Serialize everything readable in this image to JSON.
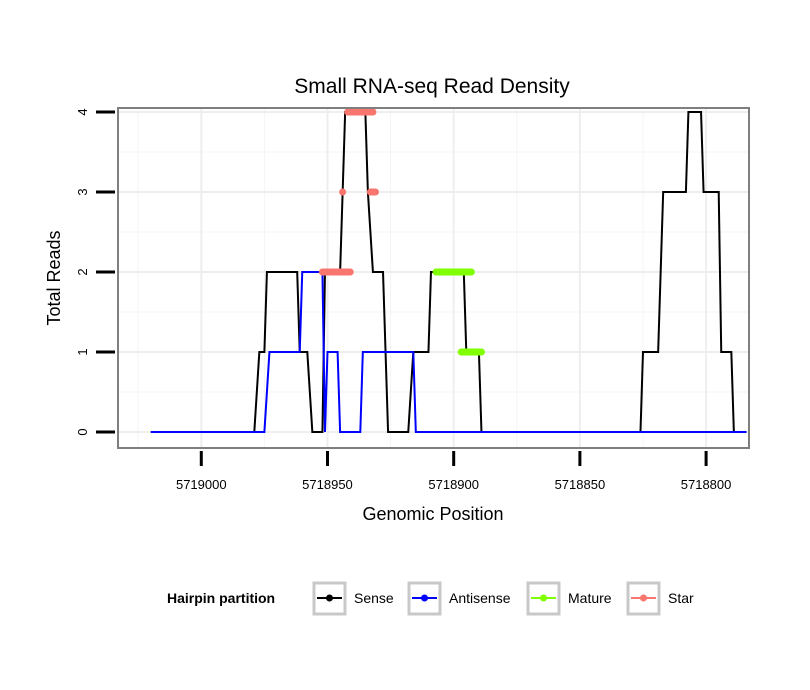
{
  "chart_data": {
    "type": "line",
    "title": "Small RNA-seq Read Density",
    "xlabel": "Genomic Position",
    "ylabel": "Total Reads",
    "xlim": [
      5719033,
      5718783
    ],
    "x_reversed": true,
    "ylim": [
      -0.2,
      4.05
    ],
    "x_ticks": [
      5719000,
      5718950,
      5718900,
      5718850,
      5718800
    ],
    "x_tick_labels": [
      "5719000",
      "5718950",
      "5718900",
      "5718850",
      "5718800"
    ],
    "y_ticks": [
      0,
      1,
      2,
      3,
      4
    ],
    "y_tick_labels": [
      "0",
      "1",
      "2",
      "3",
      "4"
    ],
    "grid": true,
    "legend": {
      "title": "Hairpin partition",
      "position": "bottom",
      "entries": [
        "Sense",
        "Antisense",
        "Mature",
        "Star"
      ]
    },
    "series": [
      {
        "name": "Sense",
        "kind": "line",
        "color": "#000000",
        "points": [
          [
            5719020,
            0
          ],
          [
            5718979,
            0
          ],
          [
            5718977,
            1
          ],
          [
            5718975,
            1
          ],
          [
            5718974,
            2
          ],
          [
            5718962,
            2
          ],
          [
            5718961,
            1
          ],
          [
            5718958,
            1
          ],
          [
            5718956,
            0
          ],
          [
            5718952,
            0
          ],
          [
            5718951,
            2
          ],
          [
            5718945,
            2
          ],
          [
            5718944,
            3
          ],
          [
            5718943,
            4
          ],
          [
            5718935,
            4
          ],
          [
            5718934,
            3
          ],
          [
            5718932,
            2
          ],
          [
            5718928,
            2
          ],
          [
            5718926,
            0
          ],
          [
            5718918,
            0
          ],
          [
            5718916,
            1
          ],
          [
            5718910,
            1
          ],
          [
            5718909,
            2
          ],
          [
            5718896,
            2
          ],
          [
            5718895,
            1
          ],
          [
            5718890,
            1
          ],
          [
            5718889,
            0
          ],
          [
            5718826,
            0
          ],
          [
            5718825,
            1
          ],
          [
            5718819,
            1
          ],
          [
            5718817,
            3
          ],
          [
            5718808,
            3
          ],
          [
            5718807,
            4
          ],
          [
            5718802,
            4
          ],
          [
            5718801,
            3
          ],
          [
            5718795,
            3
          ],
          [
            5718794,
            1
          ],
          [
            5718790,
            1
          ],
          [
            5718789,
            0
          ],
          [
            5718784,
            0
          ]
        ]
      },
      {
        "name": "Antisense",
        "kind": "line",
        "color": "#0000ff",
        "points": [
          [
            5719020,
            0
          ],
          [
            5718975,
            0
          ],
          [
            5718973,
            1
          ],
          [
            5718961,
            1
          ],
          [
            5718960,
            2
          ],
          [
            5718952,
            2
          ],
          [
            5718951,
            0
          ],
          [
            5718950,
            1
          ],
          [
            5718946,
            1
          ],
          [
            5718945,
            0
          ],
          [
            5718937,
            0
          ],
          [
            5718936,
            1
          ],
          [
            5718916,
            1
          ],
          [
            5718915,
            0
          ],
          [
            5718784,
            0
          ]
        ]
      },
      {
        "name": "Mature",
        "kind": "segment",
        "color": "#7fff00",
        "segments": [
          [
            5718907,
            5718893,
            2
          ],
          [
            5718897,
            5718889,
            1
          ]
        ]
      },
      {
        "name": "Star",
        "kind": "segment",
        "color": "#f8766d",
        "segments": [
          [
            5718952,
            5718941,
            2
          ],
          [
            5718944,
            5718944,
            3
          ],
          [
            5718942,
            5718932,
            4
          ],
          [
            5718933,
            5718931,
            3
          ]
        ]
      }
    ]
  }
}
